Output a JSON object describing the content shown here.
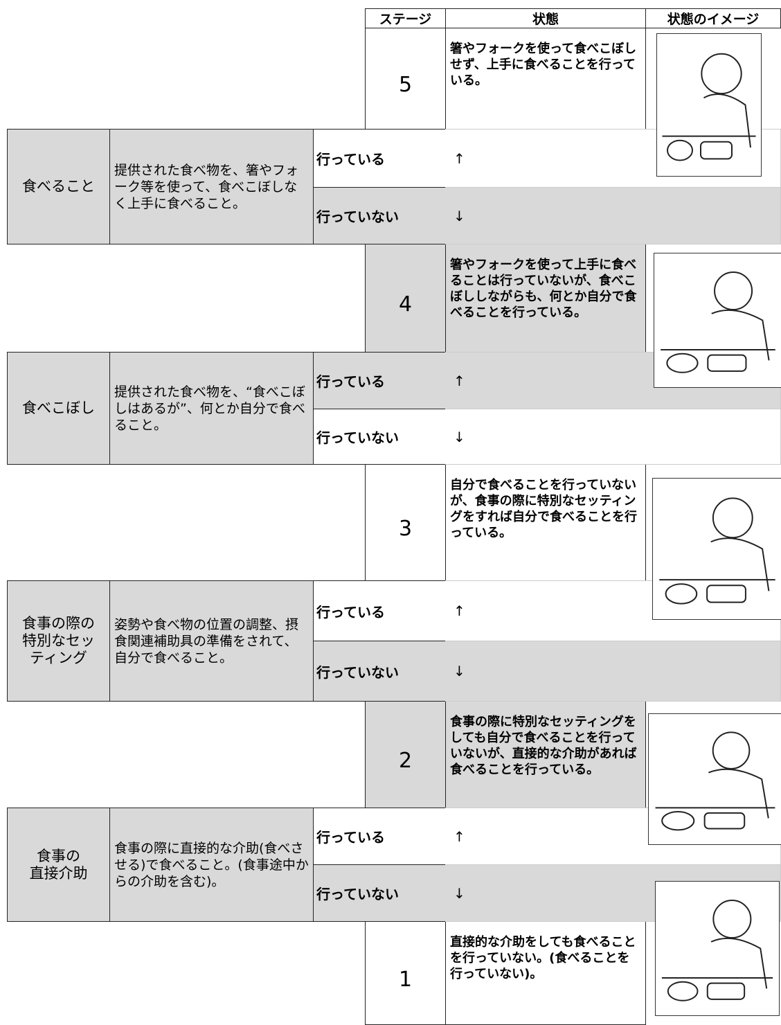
{
  "header": {
    "stage": "ステージ",
    "state": "状態",
    "image": "状態のイメージ"
  },
  "stages": [
    {
      "stage": 5,
      "state": "箸やフォークを使って食べこぼしせず、上手に食べることを行っている。"
    },
    {
      "stage": 4,
      "state": "箸やフォークを使って上手に食べることは行っていないが、食べこぼししながらも、何とか自分で食べることを行っている。"
    },
    {
      "stage": 3,
      "state": "自分で食べることを行っていないが、食事の際に特別なセッティングをすれば自分で食べることを行っている。"
    },
    {
      "stage": 2,
      "state": "食事の際に特別なセッティングをしても自分で食べることを行っていないが、直接的な介助があれば食べることを行っている。"
    },
    {
      "stage": 1,
      "state": "直接的な介助をしても食べることを行っていない。(食べることを行っていない)。"
    }
  ],
  "items": [
    {
      "name": "食べること",
      "description": "提供された食べ物を、箸やフォーク等を使って、食べこぼしなく上手に食べること。",
      "yes": "行っている",
      "yes_arrow": "↑",
      "no": "行っていない",
      "no_arrow": "↓"
    },
    {
      "name": "食べこぼし",
      "description": "提供された食べ物を、“食べこぼしはあるが”、何とか自分で食べること。",
      "yes": "行っている",
      "yes_arrow": "↑",
      "no": "行っていない",
      "no_arrow": "↓"
    },
    {
      "name": "食事の際の\n特別なセッ\nティング",
      "description": "姿勢や食べ物の位置の調整、摂食関連補助具の準備をされて、自分で食べること。",
      "yes": "行っている",
      "yes_arrow": "↑",
      "no": "行っていない",
      "no_arrow": "↓"
    },
    {
      "name": "食事の\n直接介助",
      "description": "食事の際に直接的な介助(食べさせる)で食べること。(食事途中からの介助を含む)。",
      "yes": "行っている",
      "yes_arrow": "↑",
      "no": "行っていない",
      "no_arrow": "↓"
    }
  ]
}
